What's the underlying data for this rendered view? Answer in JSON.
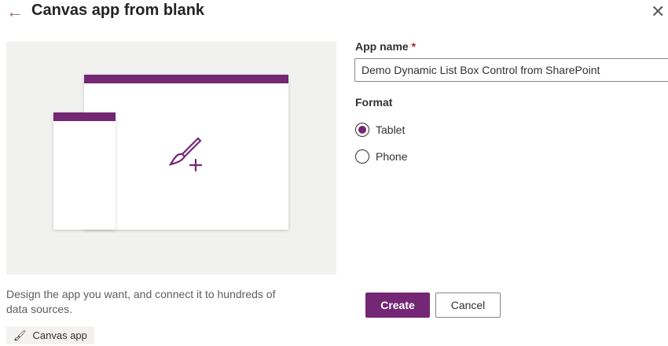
{
  "header": {
    "title": "Canvas app from blank",
    "back_icon": "arrow-left-icon",
    "close_icon": "close-icon"
  },
  "preview": {
    "description": "Design the app you want, and connect it to hundreds of data sources.",
    "chip_label": "Canvas app",
    "accent": "#742774"
  },
  "form": {
    "app_name_label": "App name",
    "required_mark": "*",
    "app_name_value": "Demo Dynamic List Box Control from SharePoint",
    "format_label": "Format",
    "options": [
      {
        "label": "Tablet",
        "selected": true
      },
      {
        "label": "Phone",
        "selected": false
      }
    ]
  },
  "actions": {
    "create": "Create",
    "cancel": "Cancel"
  }
}
